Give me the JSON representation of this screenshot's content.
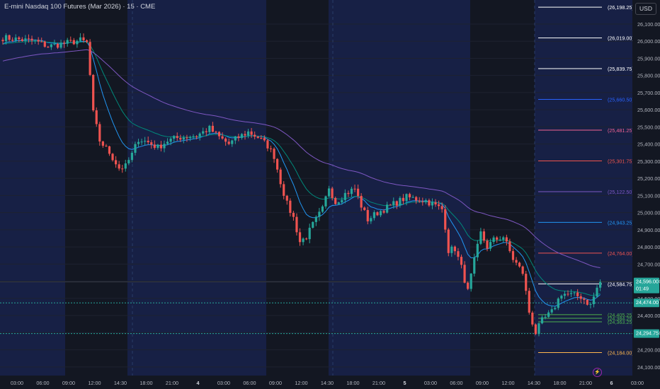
{
  "title": "E-mini Nasdaq 100 Futures (Mar 2026) · 15 · CME",
  "currency": "USD",
  "colors": {
    "background": "#131722",
    "session_band": "#172045",
    "up": "#26a69a",
    "down": "#ef5350",
    "ema_fast": "#2196f3",
    "ema_mid": "#00897b",
    "ema_slow": "#7e57c2",
    "axis_text": "#b2b5be"
  },
  "chart_data": {
    "type": "candlestick",
    "ylim": [
      24050,
      26240
    ],
    "y_ticks": [
      "26,100.00",
      "26,000.00",
      "25,900.00",
      "25,800.00",
      "25,700.00",
      "25,600.00",
      "25,500.00",
      "25,400.00",
      "25,300.00",
      "25,200.00",
      "25,100.00",
      "25,000.00",
      "24,900.00",
      "24,800.00",
      "24,700.00",
      "24,600.00",
      "24,500.00",
      "24,400.00",
      "24,300.00",
      "24,200.00",
      "24,100.00"
    ],
    "x_tick_labels": [
      "03:00",
      "06:00",
      "09:00",
      "12:00",
      "14:30",
      "18:00",
      "21:00",
      "4",
      "03:00",
      "06:00",
      "09:00",
      "12:00",
      "14:30",
      "18:00",
      "21:00",
      "5",
      "03:00",
      "06:00",
      "09:00",
      "12:00",
      "14:30",
      "18:00",
      "21:00",
      "6",
      "03:00"
    ],
    "price_path": [
      [
        0,
        26020
      ],
      [
        5,
        26010
      ],
      [
        10,
        26000
      ],
      [
        14,
        25970
      ],
      [
        20,
        25990
      ],
      [
        24,
        26005
      ],
      [
        26,
        25990
      ],
      [
        27,
        25800
      ],
      [
        28,
        25580
      ],
      [
        30,
        25420
      ],
      [
        33,
        25350
      ],
      [
        36,
        25260
      ],
      [
        38,
        25270
      ],
      [
        40,
        25340
      ],
      [
        42,
        25430
      ],
      [
        45,
        25410
      ],
      [
        48,
        25380
      ],
      [
        51,
        25420
      ],
      [
        55,
        25440
      ],
      [
        60,
        25450
      ],
      [
        64,
        25490
      ],
      [
        67,
        25440
      ],
      [
        70,
        25400
      ],
      [
        73,
        25440
      ],
      [
        76,
        25470
      ],
      [
        79,
        25440
      ],
      [
        82,
        25390
      ],
      [
        84,
        25330
      ],
      [
        86,
        25180
      ],
      [
        88,
        25050
      ],
      [
        90,
        24970
      ],
      [
        92,
        24830
      ],
      [
        94,
        24860
      ],
      [
        96,
        24930
      ],
      [
        99,
        25020
      ],
      [
        101,
        25150
      ],
      [
        103,
        25060
      ],
      [
        106,
        25110
      ],
      [
        109,
        25140
      ],
      [
        111,
        25040
      ],
      [
        113,
        24960
      ],
      [
        116,
        25000
      ],
      [
        119,
        25030
      ],
      [
        122,
        25060
      ],
      [
        125,
        25090
      ],
      [
        128,
        25080
      ],
      [
        131,
        25070
      ],
      [
        134,
        25040
      ],
      [
        136,
        25020
      ],
      [
        137,
        24920
      ],
      [
        138,
        24780
      ],
      [
        140,
        24790
      ],
      [
        142,
        24680
      ],
      [
        144,
        24540
      ],
      [
        146,
        24720
      ],
      [
        148,
        24880
      ],
      [
        150,
        24800
      ],
      [
        152,
        24840
      ],
      [
        155,
        24860
      ],
      [
        158,
        24730
      ],
      [
        161,
        24650
      ],
      [
        163,
        24420
      ],
      [
        165,
        24300
      ],
      [
        167,
        24370
      ],
      [
        170,
        24420
      ],
      [
        173,
        24530
      ],
      [
        176,
        24520
      ],
      [
        179,
        24510
      ],
      [
        182,
        24460
      ],
      [
        184,
        24560
      ],
      [
        185,
        24597
      ]
    ],
    "emas": [
      {
        "name": "",
        "period": 10,
        "color": "#2196f3"
      },
      {
        "name": "",
        "period": 21,
        "color": "#00897b"
      },
      {
        "name": "",
        "period": 60,
        "color": "#7e57c2"
      }
    ],
    "levels": [
      {
        "value": 26198.25,
        "label": "(26,198.25)",
        "color": "#ffffff",
        "style": "solid"
      },
      {
        "value": 26019.0,
        "label": "(26,019.00)",
        "color": "#ffffff",
        "style": "solid"
      },
      {
        "value": 25839.75,
        "label": "(25,839.75)",
        "color": "#ffffff",
        "style": "solid"
      },
      {
        "value": 25660.5,
        "label": "(25,660.50)",
        "color": "#2962ff",
        "style": "solid"
      },
      {
        "value": 25481.25,
        "label": "(25,481.25)",
        "color": "#f06292",
        "style": "solid"
      },
      {
        "value": 25301.75,
        "label": "(25,301.75)",
        "color": "#ef5350",
        "style": "solid"
      },
      {
        "value": 25122.5,
        "label": "(25,122.50)",
        "color": "#7e57c2",
        "style": "solid"
      },
      {
        "value": 24943.25,
        "label": "(24,943.25)",
        "color": "#2196f3",
        "style": "solid"
      },
      {
        "value": 24764.0,
        "label": "(24,764.00)",
        "color": "#ef5350",
        "style": "solid"
      },
      {
        "value": 24584.75,
        "label": "(24,584.75)",
        "color": "#ffffff",
        "style": "solid"
      },
      {
        "value": 24405.25,
        "label": "(24,405.25)",
        "color": "#4caf50",
        "style": "solid"
      },
      {
        "value": 24384.25,
        "label": "(24,384.25)",
        "color": "#4caf50",
        "style": "solid"
      },
      {
        "value": 24363.25,
        "label": "(24,363.25)",
        "color": "#4caf50",
        "style": "solid"
      },
      {
        "value": 24184.0,
        "label": "(24,184.00)",
        "color": "#ffb74d",
        "style": "solid"
      }
    ],
    "dotted_levels": [
      {
        "value": 24474.0,
        "label": "24,474.00",
        "color": "#26a69a"
      },
      {
        "value": 24294.75,
        "label": "24,294.75",
        "color": "#26a69a"
      }
    ],
    "last_price": {
      "value": 24596.0,
      "label": "24,596.00",
      "countdown": "01:49",
      "color": "#26a69a"
    }
  }
}
